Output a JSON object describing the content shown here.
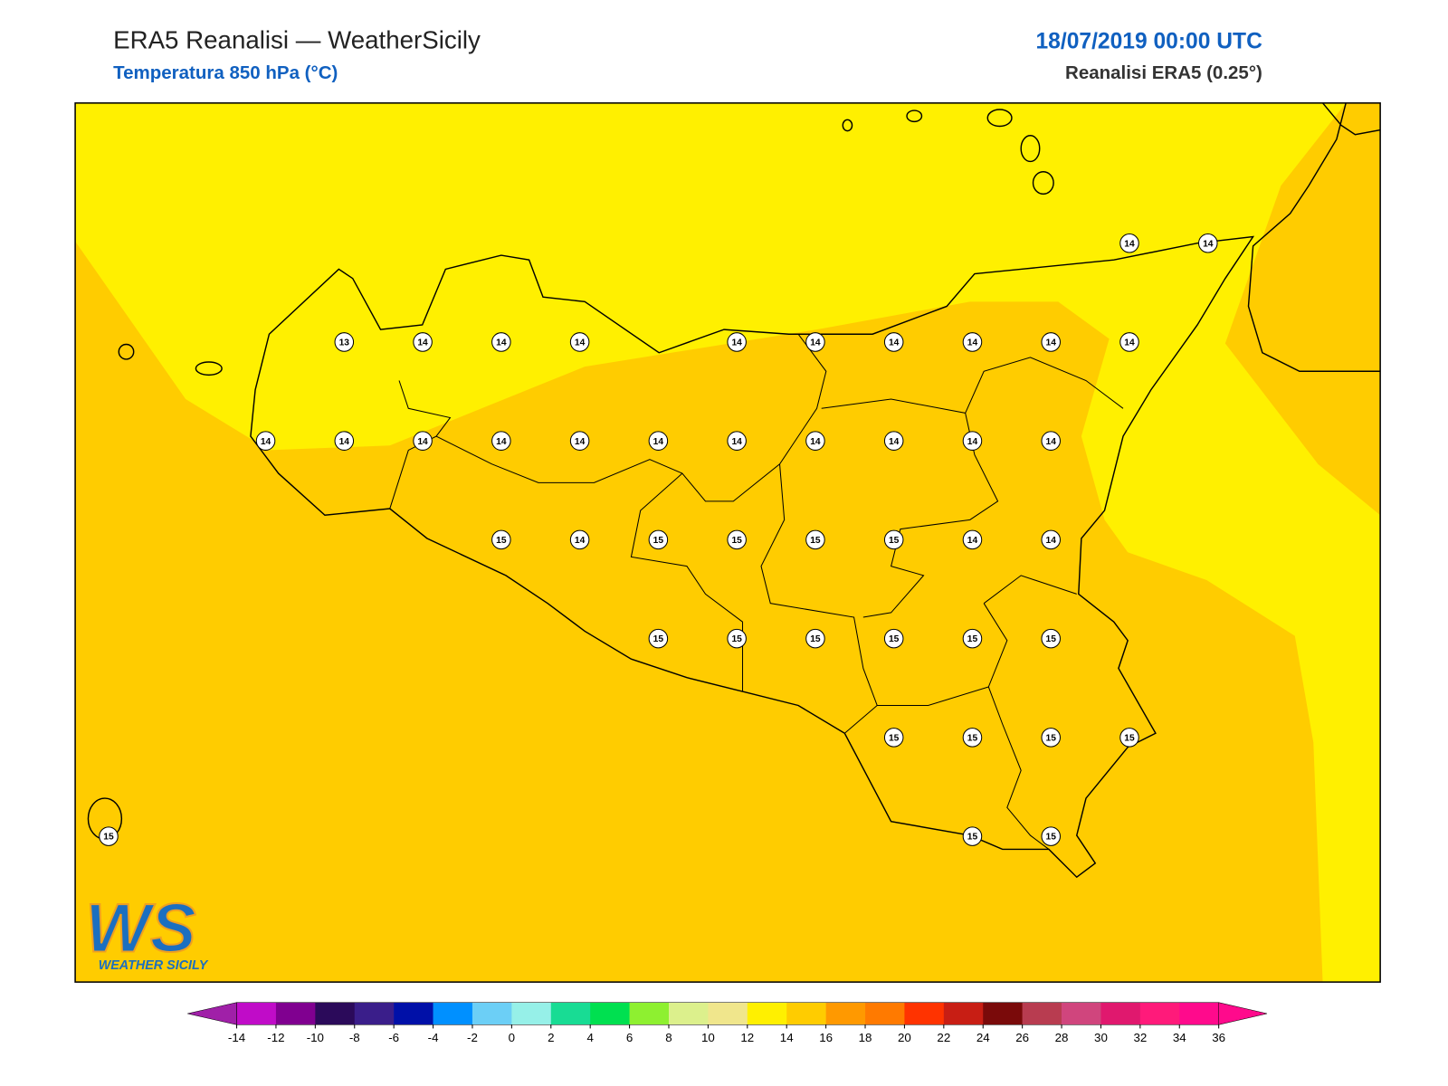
{
  "header": {
    "title": "ERA5 Reanalisi — WeatherSicily",
    "subtitle": "Temperatura 850 hPa (°C)",
    "date": "18/07/2019 00:00 UTC",
    "source": "Reanalisi ERA5 (0.25°)"
  },
  "stations": {
    "grid": [
      [
        null,
        null,
        null,
        null,
        null,
        null,
        null,
        null,
        null,
        null,
        null,
        null,
        null,
        14,
        14
      ],
      [
        null,
        null,
        null,
        13,
        14,
        14,
        14,
        null,
        14,
        14,
        14,
        14,
        14,
        14,
        null
      ],
      [
        null,
        null,
        14,
        14,
        14,
        14,
        14,
        14,
        14,
        14,
        14,
        14,
        14,
        null,
        null
      ],
      [
        null,
        null,
        null,
        null,
        null,
        15,
        14,
        15,
        15,
        15,
        15,
        14,
        14,
        null,
        null
      ],
      [
        null,
        null,
        null,
        null,
        null,
        null,
        null,
        15,
        15,
        15,
        15,
        15,
        15,
        null,
        null
      ],
      [
        null,
        null,
        null,
        null,
        null,
        null,
        null,
        null,
        null,
        null,
        15,
        15,
        15,
        15,
        null
      ],
      [
        15,
        null,
        null,
        null,
        null,
        null,
        null,
        null,
        null,
        null,
        null,
        15,
        15,
        null,
        null
      ]
    ]
  },
  "colorbar": {
    "ticks": [
      -14,
      -12,
      -10,
      -8,
      -6,
      -4,
      -2,
      0,
      2,
      4,
      6,
      8,
      10,
      12,
      14,
      16,
      18,
      20,
      22,
      24,
      26,
      28,
      30,
      32,
      34,
      36
    ],
    "colors": [
      "#c00cc8",
      "#800090",
      "#2b0a5a",
      "#3a1e8a",
      "#0010a8",
      "#0090ff",
      "#6ccff6",
      "#96f0e8",
      "#18dc94",
      "#00e050",
      "#8ef030",
      "#dcf08c",
      "#f0e68c",
      "#fff000",
      "#ffcc00",
      "#ff9900",
      "#ff7a00",
      "#ff3300",
      "#c81e14",
      "#7a0a0a",
      "#b83c50",
      "#d0457d",
      "#e0186e",
      "#ff1a7a",
      "#ff0a8c"
    ],
    "under": "#a020a8",
    "over": "#ff0a8c"
  },
  "logo": {
    "mark": "WS",
    "text": "WEATHER SICILY"
  }
}
